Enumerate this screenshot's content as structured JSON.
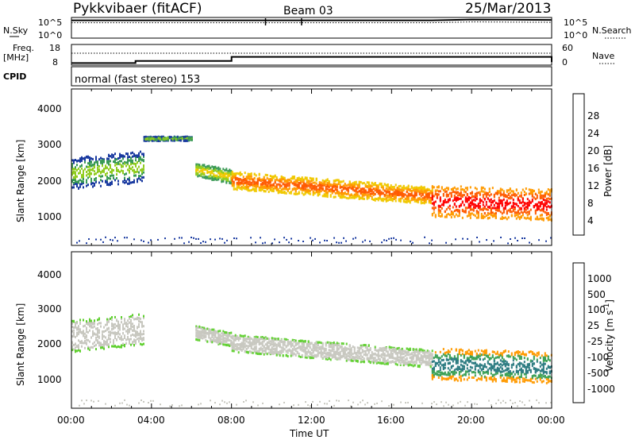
{
  "header": {
    "title": "Pykkvibaer (fitACF)",
    "beam": "Beam 03",
    "date": "25/Mar/2013"
  },
  "top_panels": {
    "nsky_label": "N.Sky",
    "nsky_left_ticks": [
      "10^5",
      "10^0"
    ],
    "nsky_right_ticks": [
      "10^5",
      "10^0"
    ],
    "nsearch_label": "N.Search",
    "freq_label_1": "Freq.",
    "freq_label_2": "[MHz]",
    "freq_ticks": [
      "18",
      "8"
    ],
    "nave_ticks": [
      "60",
      "0"
    ],
    "nave_label": "Nave",
    "cpid_label": "CPID",
    "cpid_text": "normal (fast stereo) 153"
  },
  "power_panel": {
    "ylabel": "Slant Range [km]",
    "yticks": [
      "4000",
      "3000",
      "2000",
      "1000"
    ],
    "colorbar_label": "Power [dB]",
    "colorbar_ticks": [
      "28",
      "24",
      "20",
      "16",
      "12",
      "8",
      "4"
    ],
    "colorbar_colors": [
      "#ff0000",
      "#ff5a00",
      "#ff9a00",
      "#f0c800",
      "#90cc20",
      "#3a9a55",
      "#1a3aa0",
      "#0000ff"
    ]
  },
  "velocity_panel": {
    "ylabel": "Slant Range [km]",
    "yticks": [
      "4000",
      "3000",
      "2000",
      "1000"
    ],
    "colorbar_label": "Velocity [m s",
    "colorbar_superscript": "-1",
    "colorbar_label_end": "]",
    "colorbar_ticks": [
      "1000",
      "500",
      "100",
      "25",
      "-25",
      "-100",
      "-500",
      "-1000"
    ],
    "colorbar_colors": [
      "#1a3aa0",
      "#2a7a80",
      "#3aa055",
      "#60d030",
      "#c8c8c0",
      "#ff9a00",
      "#ff5a00",
      "#ff2000",
      "#ee0000"
    ]
  },
  "x_axis": {
    "ticks": [
      "00:00",
      "04:00",
      "08:00",
      "12:00",
      "16:00",
      "20:00",
      "00:00"
    ],
    "label": "Time UT"
  },
  "chart_data": [
    {
      "type": "line",
      "name_label": "N.Sky",
      "x": [
        0,
        4,
        8,
        12,
        16,
        18,
        20,
        24
      ],
      "y_log10": [
        4.3,
        4.3,
        4.3,
        4.3,
        4.3,
        4.3,
        4.5,
        4.4
      ],
      "ylim_log10": [
        0,
        5
      ]
    },
    {
      "type": "line",
      "name_label": "Freq. [MHz]",
      "x": [
        0,
        2.6,
        3.2,
        8,
        18,
        24
      ],
      "y": [
        9,
        9,
        10,
        12,
        12,
        9.5
      ],
      "ylim": [
        8,
        18
      ]
    },
    {
      "type": "heatmap",
      "title": "Power [dB]",
      "xlabel": "Time UT",
      "ylabel": "Slant Range [km]",
      "xlim": [
        0,
        24
      ],
      "ylim": [
        0,
        4500
      ],
      "color_levels": [
        4,
        8,
        12,
        16,
        20,
        24,
        28
      ],
      "bands": [
        {
          "t_start": 0,
          "t_end": 3.6,
          "range_center": [
            2100,
            2300
          ],
          "range_width": 900,
          "level": 12
        },
        {
          "t_start": 3.6,
          "t_end": 6.0,
          "range_center": [
            3100,
            3100
          ],
          "range_width": 120,
          "level": 12
        },
        {
          "t_start": 6.2,
          "t_end": 8.0,
          "range_center": [
            2200,
            2000
          ],
          "range_width": 400,
          "level": 16
        },
        {
          "t_start": 8.0,
          "t_end": 18.0,
          "range_center": [
            1900,
            1450
          ],
          "range_width": 500,
          "level": 24
        },
        {
          "t_start": 18.0,
          "t_end": 24.0,
          "range_center": [
            1300,
            1200
          ],
          "range_width": 900,
          "level": 28
        }
      ]
    },
    {
      "type": "heatmap",
      "title": "Velocity [m s-1]",
      "xlabel": "Time UT",
      "ylabel": "Slant Range [km]",
      "xlim": [
        0,
        24
      ],
      "ylim": [
        0,
        4500
      ],
      "color_levels": [
        1000,
        500,
        100,
        25,
        -25,
        -100,
        -500,
        -1000
      ],
      "bands": [
        {
          "t_start": 0,
          "t_end": 3.6,
          "range_center": [
            2100,
            2300
          ],
          "range_width": 900,
          "level": -25
        },
        {
          "t_start": 6.2,
          "t_end": 8.0,
          "range_center": [
            2200,
            2000
          ],
          "range_width": 400,
          "level": -25
        },
        {
          "t_start": 8.0,
          "t_end": 18.0,
          "range_center": [
            1900,
            1450
          ],
          "range_width": 500,
          "level": -25
        },
        {
          "t_start": 18.0,
          "t_end": 24.0,
          "range_center": [
            1300,
            1200
          ],
          "range_width": 900,
          "level": 100
        }
      ]
    }
  ]
}
